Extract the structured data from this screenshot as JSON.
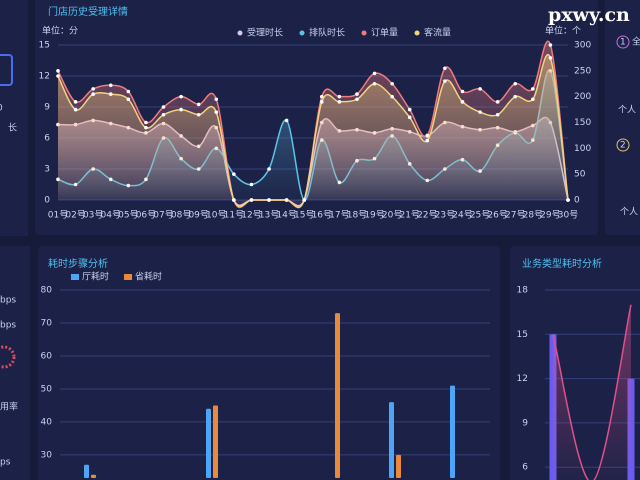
{
  "watermark": "pxwy.cn",
  "side_texts": {
    "left": [
      "0",
      "长",
      "bps",
      "bps",
      "用率",
      "ps"
    ],
    "right": [
      "1",
      "全",
      "个人",
      "2",
      "个人"
    ]
  },
  "chart_data": [
    {
      "type": "line",
      "title": "门店历史受理详情",
      "y_unit": "单位：分",
      "y2_unit": "单位：个",
      "categories": [
        "01号",
        "02号",
        "03号",
        "04号",
        "05号",
        "06号",
        "07号",
        "08号",
        "09号",
        "10号",
        "11号",
        "12号",
        "13号",
        "14号",
        "15号",
        "16号",
        "17号",
        "18号",
        "19号",
        "20号",
        "21号",
        "22号",
        "23号",
        "24号",
        "25号",
        "26号",
        "27号",
        "28号",
        "29号",
        "30号"
      ],
      "series": [
        {
          "name": "受理时长",
          "color": "#d8c6f2",
          "values": [
            7.3,
            7.3,
            7.7,
            7.4,
            7.0,
            6.5,
            7.4,
            6.2,
            5.2,
            7.0,
            0,
            0,
            0,
            0,
            0,
            7.5,
            6.7,
            6.8,
            6.5,
            6.9,
            6.6,
            6.2,
            7.5,
            7.1,
            6.8,
            7.0,
            6.6,
            7.2,
            7.5,
            0
          ]
        },
        {
          "name": "排队时长",
          "color": "#5ec4e6",
          "values": [
            2.0,
            1.5,
            3.0,
            2.0,
            1.4,
            2.0,
            6.0,
            4.0,
            3.0,
            5.0,
            2.5,
            1.5,
            3.0,
            7.7,
            0,
            5.8,
            1.7,
            3.8,
            4.0,
            6.2,
            3.5,
            1.9,
            3.0,
            3.9,
            2.8,
            5.3,
            6.5,
            5.8,
            12.5,
            0
          ]
        },
        {
          "name": "订单量",
          "color": "#f07b7b",
          "axis": "y2",
          "values": [
            250,
            190,
            215,
            222,
            210,
            150,
            180,
            200,
            185,
            195,
            0,
            0,
            0,
            0,
            0,
            200,
            200,
            205,
            245,
            225,
            175,
            125,
            255,
            210,
            215,
            190,
            225,
            215,
            300,
            0
          ]
        },
        {
          "name": "客流量",
          "color": "#f2d37c",
          "axis": "y2",
          "values": [
            240,
            175,
            205,
            205,
            195,
            140,
            165,
            175,
            165,
            170,
            0,
            0,
            0,
            0,
            0,
            190,
            190,
            195,
            225,
            200,
            160,
            115,
            230,
            190,
            170,
            165,
            200,
            195,
            275,
            0
          ]
        }
      ],
      "ylim": [
        0,
        15
      ],
      "yticks": [
        0,
        3,
        6,
        9,
        12,
        15
      ],
      "y2lim": [
        0,
        300
      ],
      "y2ticks": [
        0,
        50,
        100,
        150,
        200,
        250,
        300
      ],
      "grid": true
    },
    {
      "type": "bar",
      "title": "耗时步骤分析",
      "categories": [
        null,
        null,
        null,
        null,
        null,
        null,
        null
      ],
      "series": [
        {
          "name": "厅耗时",
          "color": "#4ea4f5",
          "values": [
            27,
            null,
            44,
            null,
            null,
            46,
            51
          ]
        },
        {
          "name": "省耗时",
          "color": "#e8893c",
          "values": [
            24,
            null,
            45,
            null,
            73,
            30,
            null
          ]
        }
      ],
      "ylim": [
        23,
        80
      ],
      "yticks": [
        30,
        40,
        50,
        60,
        70,
        80
      ],
      "grid": true
    },
    {
      "type": "bar",
      "title": "业务类型耗时分析",
      "categories": [
        null,
        null,
        null
      ],
      "series": [
        {
          "color": "#6b5cf0",
          "values": [
            15,
            null,
            12
          ]
        },
        {
          "color": "#e0508a",
          "type": "line",
          "values": [
            15,
            5,
            17
          ]
        }
      ],
      "ylim": [
        5,
        18
      ],
      "yticks": [
        6,
        9,
        12,
        15,
        18
      ],
      "grid": true
    }
  ]
}
